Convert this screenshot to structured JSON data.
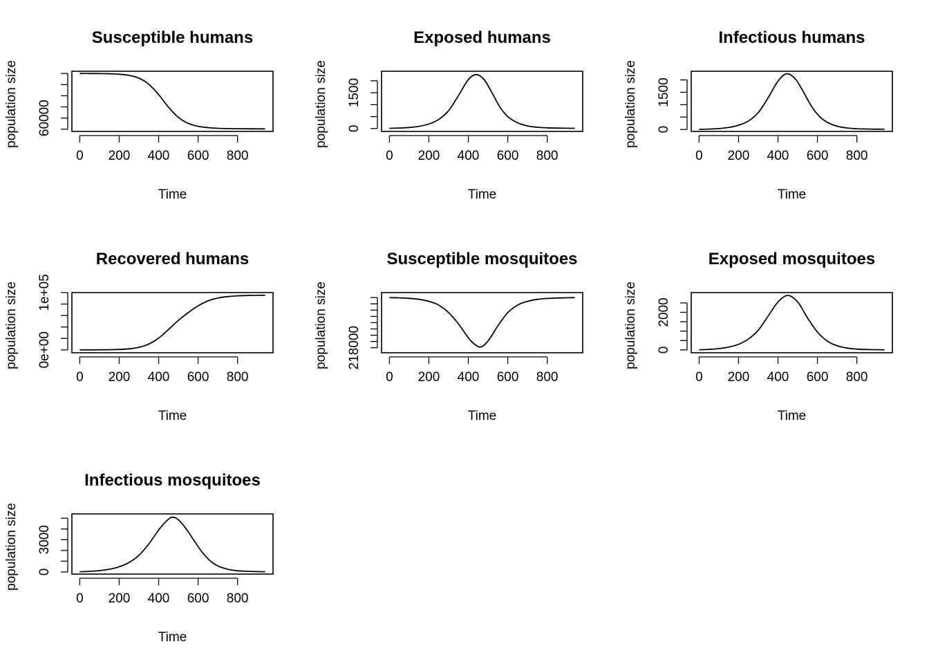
{
  "chart_data": [
    {
      "type": "line",
      "title": "Susceptible humans",
      "xlabel": "Time",
      "ylabel": "population size",
      "xlim": [
        -40,
        980
      ],
      "ylim": [
        48000,
        102000
      ],
      "x_ticks": [
        0,
        200,
        400,
        600,
        800
      ],
      "y_ticks": [
        50000,
        60000,
        70000,
        80000,
        90000,
        100000
      ],
      "y_tick_labels": [
        "",
        "60000",
        "",
        "",
        "",
        ""
      ],
      "x": [
        0,
        50,
        100,
        150,
        200,
        250,
        300,
        350,
        400,
        450,
        500,
        550,
        600,
        650,
        700,
        750,
        800,
        850,
        900,
        940
      ],
      "y": [
        100000,
        99970,
        99900,
        99750,
        99350,
        98300,
        95800,
        90300,
        81000,
        69700,
        60600,
        55200,
        52600,
        51400,
        50800,
        50550,
        50420,
        50360,
        50320,
        50300
      ]
    },
    {
      "type": "line",
      "title": "Exposed humans",
      "xlabel": "Time",
      "ylabel": "population size",
      "xlim": [
        -40,
        980
      ],
      "ylim": [
        -120,
        2400
      ],
      "x_ticks": [
        0,
        200,
        400,
        600,
        800
      ],
      "y_ticks": [
        0,
        500,
        1000,
        1500,
        2000
      ],
      "y_tick_labels": [
        "0",
        "",
        "",
        "1500",
        ""
      ],
      "x": [
        0,
        50,
        100,
        150,
        200,
        250,
        300,
        350,
        400,
        440,
        480,
        520,
        560,
        600,
        650,
        700,
        750,
        800,
        850,
        900,
        940
      ],
      "y": [
        10,
        22,
        45,
        95,
        190,
        380,
        750,
        1380,
        2050,
        2260,
        2050,
        1500,
        900,
        500,
        240,
        110,
        55,
        30,
        18,
        12,
        10
      ]
    },
    {
      "type": "line",
      "title": "Infectious humans",
      "xlabel": "Time",
      "ylabel": "population size",
      "xlim": [
        -40,
        980
      ],
      "ylim": [
        -80,
        2350
      ],
      "x_ticks": [
        0,
        200,
        400,
        600,
        800
      ],
      "y_ticks": [
        0,
        500,
        1000,
        1500,
        2000
      ],
      "y_tick_labels": [
        "0",
        "",
        "",
        "1500",
        ""
      ],
      "x": [
        0,
        50,
        100,
        150,
        200,
        250,
        300,
        350,
        400,
        445,
        490,
        530,
        570,
        610,
        650,
        700,
        750,
        800,
        850,
        900,
        940
      ],
      "y": [
        5,
        15,
        35,
        80,
        170,
        340,
        680,
        1280,
        1950,
        2250,
        2020,
        1500,
        930,
        530,
        290,
        130,
        60,
        30,
        18,
        10,
        8
      ]
    },
    {
      "type": "line",
      "title": "Recovered humans",
      "xlabel": "Time",
      "ylabel": "population size",
      "xlim": [
        -40,
        980
      ],
      "ylim": [
        -5000,
        100000
      ],
      "x_ticks": [
        0,
        200,
        400,
        600,
        800
      ],
      "y_ticks": [
        0,
        20000,
        40000,
        60000,
        80000,
        100000
      ],
      "y_tick_labels": [
        "0e+00",
        "",
        "",
        "",
        "",
        "1e+05"
      ],
      "x": [
        0,
        50,
        100,
        150,
        200,
        250,
        300,
        350,
        400,
        450,
        500,
        550,
        600,
        650,
        700,
        750,
        800,
        850,
        900,
        940
      ],
      "y": [
        0,
        40,
        130,
        320,
        800,
        1900,
        4500,
        10200,
        20500,
        35500,
        51500,
        65000,
        77000,
        85500,
        90500,
        93000,
        94300,
        94900,
        95200,
        95300
      ]
    },
    {
      "type": "line",
      "title": "Susceptible mosquitoes",
      "xlabel": "Time",
      "ylabel": "population size",
      "xlim": [
        -40,
        980
      ],
      "ylim": [
        217600,
        222400
      ],
      "x_ticks": [
        0,
        200,
        400,
        600,
        800
      ],
      "y_ticks": [
        218000,
        218500,
        219000,
        219500,
        220000,
        220500,
        221000,
        221500,
        222000
      ],
      "y_tick_labels": [
        "218000",
        "",
        "",
        "",
        "",
        "",
        "",
        "",
        ""
      ],
      "x": [
        0,
        50,
        100,
        150,
        200,
        250,
        300,
        350,
        400,
        430,
        460,
        490,
        520,
        550,
        600,
        650,
        700,
        750,
        800,
        850,
        900,
        940
      ],
      "y": [
        222000,
        221980,
        221940,
        221860,
        221700,
        221400,
        220800,
        219900,
        218800,
        218300,
        218050,
        218350,
        219000,
        219750,
        220800,
        221400,
        221700,
        221860,
        221930,
        221965,
        221985,
        222000
      ]
    },
    {
      "type": "line",
      "title": "Exposed mosquitoes",
      "xlabel": "Time",
      "ylabel": "population size",
      "xlim": [
        -40,
        980
      ],
      "ylim": [
        -150,
        3050
      ],
      "x_ticks": [
        0,
        200,
        400,
        600,
        800
      ],
      "y_ticks": [
        0,
        500,
        1000,
        1500,
        2000,
        2500
      ],
      "y_tick_labels": [
        "0",
        "",
        "",
        "",
        "2000",
        ""
      ],
      "x": [
        0,
        50,
        100,
        150,
        200,
        250,
        300,
        350,
        400,
        450,
        500,
        550,
        600,
        650,
        700,
        750,
        800,
        850,
        900,
        940
      ],
      "y": [
        10,
        30,
        70,
        150,
        300,
        580,
        1050,
        1800,
        2550,
        2900,
        2550,
        1700,
        950,
        470,
        220,
        100,
        45,
        22,
        12,
        8
      ]
    },
    {
      "type": "line",
      "title": "Infectious mosquitoes",
      "xlabel": "Time",
      "ylabel": "population size",
      "xlim": [
        -40,
        980
      ],
      "ylim": [
        -200,
        5400
      ],
      "x_ticks": [
        0,
        200,
        400,
        600,
        800
      ],
      "y_ticks": [
        0,
        1000,
        2000,
        3000,
        4000,
        5000
      ],
      "y_tick_labels": [
        "0",
        "",
        "",
        "3000",
        "",
        ""
      ],
      "x": [
        0,
        50,
        100,
        150,
        200,
        250,
        300,
        350,
        400,
        440,
        470,
        500,
        540,
        580,
        620,
        660,
        700,
        750,
        800,
        850,
        900,
        940
      ],
      "y": [
        20,
        55,
        120,
        250,
        480,
        880,
        1550,
        2600,
        3900,
        4750,
        5100,
        4850,
        4000,
        2900,
        1850,
        1050,
        560,
        250,
        110,
        55,
        30,
        20
      ]
    }
  ]
}
